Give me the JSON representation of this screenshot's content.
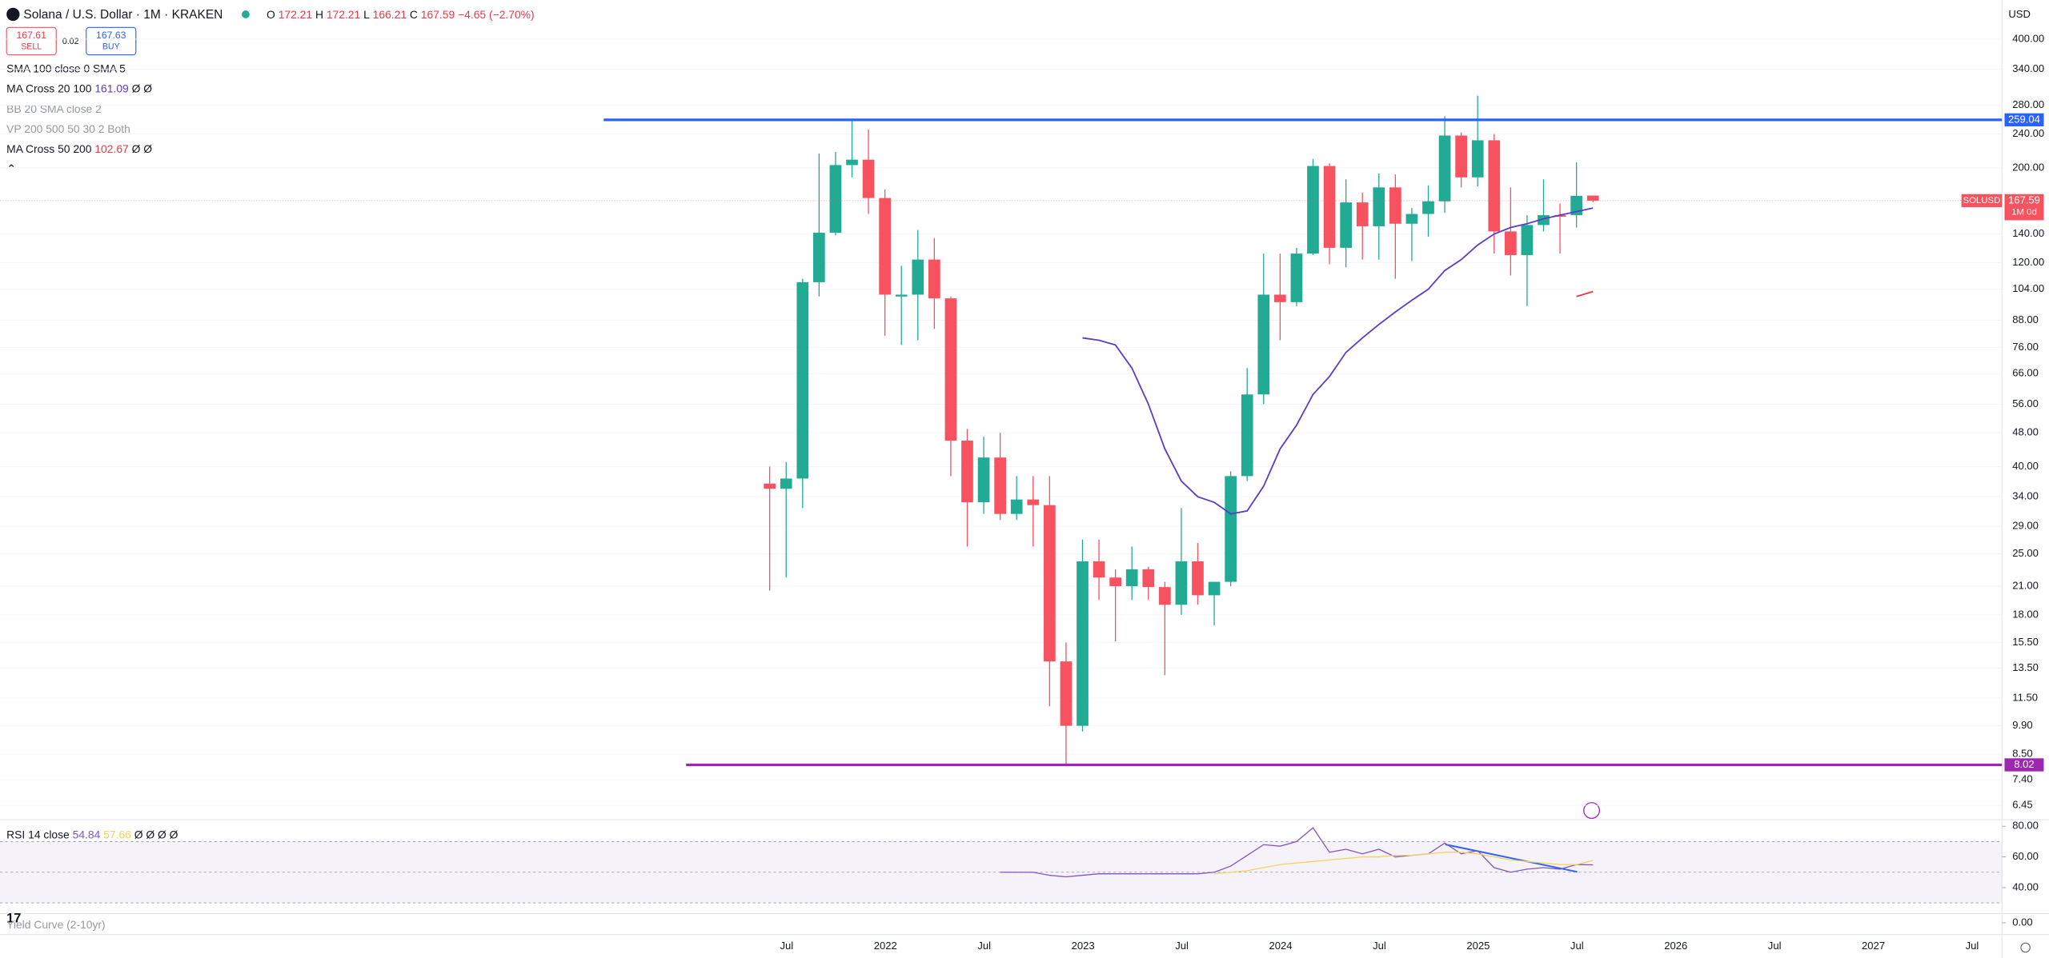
{
  "header": {
    "symbol": "Solana / U.S. Dollar · 1M · KRAKEN",
    "open_label": "O",
    "open": 172.21,
    "high_label": "H",
    "high": 172.21,
    "low_label": "L",
    "low": 166.21,
    "close_label": "C",
    "close": 167.59,
    "change": "−4.65 (−2.70%)"
  },
  "trade": {
    "sell_price": 167.61,
    "sell_label": "SELL",
    "spread": 0.02,
    "buy_price": 167.63,
    "buy_label": "BUY"
  },
  "indicators": [
    {
      "name": "SMA 100 close 0 SMA 5"
    },
    {
      "name": "MA Cross 20 100",
      "value": 161.09,
      "extra": "Ø Ø"
    },
    {
      "name": "BB 20 SMA close 2"
    },
    {
      "name": "VP 200 500 50 30 2 Both"
    },
    {
      "name": "MA Cross 50 200",
      "value": 102.67,
      "extra": "Ø Ø"
    }
  ],
  "price_axis": {
    "currency": "USD",
    "log_scale": true,
    "range": [
      5.97,
      494
    ],
    "ticks": [
      {
        "value": 400,
        "label": "400.00"
      },
      {
        "value": 340,
        "label": "340.00"
      },
      {
        "value": 280,
        "label": "280.00"
      },
      {
        "value": 240,
        "label": "240.00"
      },
      {
        "value": 200,
        "label": "200.00"
      },
      {
        "value": 140,
        "label": "140.00"
      },
      {
        "value": 120,
        "label": "120.00"
      },
      {
        "value": 104,
        "label": "104.00"
      },
      {
        "value": 88,
        "label": "88.00"
      },
      {
        "value": 76,
        "label": "76.00"
      },
      {
        "value": 66,
        "label": "66.00"
      },
      {
        "value": 56,
        "label": "56.00"
      },
      {
        "value": 48,
        "label": "48.00"
      },
      {
        "value": 40,
        "label": "40.00"
      },
      {
        "value": 34,
        "label": "34.00"
      },
      {
        "value": 29,
        "label": "29.00"
      },
      {
        "value": 25,
        "label": "25.00"
      },
      {
        "value": 21,
        "label": "21.00"
      },
      {
        "value": 18,
        "label": "18.00"
      },
      {
        "value": 15.5,
        "label": "15.50"
      },
      {
        "value": 13.5,
        "label": "13.50"
      },
      {
        "value": 11.5,
        "label": "11.50"
      },
      {
        "value": 9.9,
        "label": "9.90"
      },
      {
        "value": 8.5,
        "label": "8.50"
      },
      {
        "value": 7.4,
        "label": "7.40"
      },
      {
        "value": 6.45,
        "label": "6.45"
      }
    ]
  },
  "price_lines": [
    {
      "value": 259.04,
      "color": "#2962ff"
    },
    {
      "value": 8.02,
      "color": "#9c27b0"
    }
  ],
  "last_price": {
    "symbol": "SOLUSD",
    "value": 167.59,
    "countdown": "1M 0d"
  },
  "time_axis": [
    "Jul",
    "2022",
    "Jul",
    "2023",
    "Jul",
    "2024",
    "Jul",
    "2025",
    "Jul",
    "2026",
    "Jul",
    "2027",
    "Jul"
  ],
  "candles": {
    "up_color": "#22ab94",
    "down_color": "#f7525f",
    "open": [
      36.5,
      35.5,
      37.5,
      108,
      141,
      203,
      209,
      170,
      100,
      101,
      122,
      99,
      46,
      33,
      42,
      31,
      33.5,
      32.5,
      14,
      9.9,
      24,
      22,
      21,
      23,
      20.9,
      19,
      24,
      20,
      21.5,
      38,
      59,
      101,
      97,
      126,
      202,
      130,
      166,
      146,
      180,
      148,
      156,
      167,
      238,
      190,
      232,
      142,
      125,
      147,
      155,
      155,
      172.21
    ],
    "high": [
      40,
      41,
      110,
      216,
      218,
      259,
      246,
      178,
      118,
      143,
      137,
      100,
      49,
      47,
      48,
      38,
      38,
      38,
      15.5,
      27,
      27,
      23,
      26,
      23.3,
      21.5,
      32,
      26.5,
      21.5,
      39,
      68,
      126,
      126,
      130,
      210,
      205,
      188,
      175,
      194,
      193,
      161,
      182,
      264,
      242,
      295,
      240,
      180,
      155,
      188,
      165,
      206,
      172.21
    ],
    "low": [
      20.5,
      22,
      32,
      100,
      139,
      190,
      156,
      81,
      77,
      79,
      84,
      38,
      26,
      31,
      30,
      30,
      26,
      11,
      8.02,
      9.6,
      19.5,
      15.6,
      19.5,
      19.5,
      13,
      18,
      19,
      17,
      21,
      37,
      56,
      79,
      95,
      125,
      119,
      117,
      122,
      122,
      110,
      121,
      138,
      157,
      180,
      181,
      126,
      112,
      95,
      142,
      126,
      145,
      166.21
    ],
    "close": [
      35.5,
      37.5,
      108,
      141,
      203,
      209,
      170,
      101,
      101,
      122,
      99,
      46,
      33,
      42,
      31,
      33.5,
      32.5,
      14,
      9.9,
      24,
      22,
      21,
      23,
      20.9,
      19,
      24,
      20,
      21.5,
      38,
      59,
      101,
      97,
      126,
      202,
      130,
      166,
      146,
      180,
      148,
      156,
      167,
      238,
      190,
      232,
      142,
      125,
      147,
      155,
      154,
      172,
      167.59
    ]
  },
  "ma_20_100": {
    "color": "#5b3cc4",
    "values": [
      null,
      null,
      null,
      null,
      null,
      null,
      null,
      null,
      null,
      null,
      null,
      null,
      null,
      null,
      null,
      null,
      null,
      null,
      null,
      80,
      79,
      77,
      68,
      56,
      44,
      37,
      34,
      33,
      31,
      31.5,
      36,
      44,
      50,
      59,
      65,
      74,
      80,
      86,
      92,
      98,
      104,
      115,
      122,
      132,
      140,
      145,
      148,
      152,
      155,
      158,
      161.09
    ]
  },
  "ma_50_200": {
    "color": "#f23645",
    "values": [
      null,
      null,
      null,
      null,
      null,
      null,
      null,
      null,
      null,
      null,
      null,
      null,
      null,
      null,
      null,
      null,
      null,
      null,
      null,
      null,
      null,
      null,
      null,
      null,
      null,
      null,
      null,
      null,
      null,
      null,
      null,
      null,
      null,
      null,
      null,
      null,
      null,
      null,
      null,
      null,
      null,
      null,
      null,
      null,
      null,
      null,
      null,
      null,
      null,
      100,
      102.67
    ]
  },
  "rsi": {
    "label": "RSI 14 close",
    "value": 54.84,
    "ma_value": 57.66,
    "extra": "Ø Ø Ø Ø",
    "range": [
      23,
      84.3
    ],
    "ticks": [
      {
        "value": 80,
        "label": "80.00"
      },
      {
        "value": 60,
        "label": "60.00"
      },
      {
        "value": 40,
        "label": "40.00"
      }
    ],
    "color": "#7e57c2",
    "ma_color": "#f5d35a",
    "values": [
      null,
      null,
      null,
      null,
      null,
      null,
      null,
      null,
      null,
      null,
      null,
      null,
      null,
      null,
      50,
      50,
      50,
      48,
      47,
      48,
      49,
      49,
      49,
      49,
      49,
      49,
      49,
      50,
      54,
      61,
      68,
      67,
      70,
      79,
      63,
      65,
      62,
      65,
      60,
      61,
      62,
      69,
      62,
      64,
      53,
      50,
      52,
      53,
      52,
      55,
      54.84
    ],
    "ma": [
      null,
      null,
      null,
      null,
      null,
      null,
      null,
      null,
      null,
      null,
      null,
      null,
      null,
      null,
      null,
      null,
      null,
      null,
      null,
      null,
      null,
      null,
      null,
      null,
      null,
      null,
      null,
      49,
      50,
      51,
      53,
      55,
      56,
      57,
      58,
      59,
      60,
      60,
      61,
      61,
      62,
      63,
      63,
      62,
      60,
      58,
      57,
      56,
      55,
      55,
      57.66
    ]
  },
  "yield": {
    "label": "Yield Curve (2-10yr)",
    "tick": {
      "value": 0,
      "label": "0.00"
    }
  }
}
